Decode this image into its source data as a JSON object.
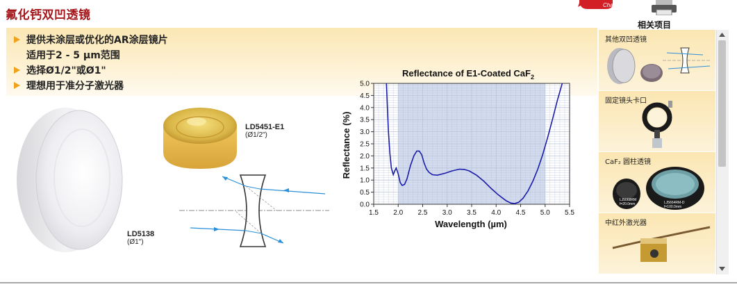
{
  "page": {
    "title": "氟化钙双凹透镜",
    "related_title": "相关项目",
    "chat_label": "Chat!"
  },
  "features": [
    {
      "text": "提供未涂层或优化的AR涂层镜片",
      "bullet": true
    },
    {
      "text": "适用于2 - 5 µm范围",
      "bullet": false
    },
    {
      "text": "选择Ø1/2\"或Ø1\"",
      "bullet": true
    },
    {
      "text": "理想用于准分子激光器",
      "bullet": true
    }
  ],
  "products": [
    {
      "code": "LD5451-E1",
      "size": "(Ø1/2\")"
    },
    {
      "code": "LD5138",
      "size": "(Ø1\")"
    }
  ],
  "related_items": [
    {
      "label": "其他双凹透镜",
      "icon": "biconcave-lens-icon"
    },
    {
      "label": "固定镜头卡口",
      "icon": "lens-mount-icon"
    },
    {
      "label": "CaF₂ 圆柱透镜",
      "icon": "mounted-lens-icon",
      "sublabels": [
        "LJ5068RM",
        "f=20.0mm",
        "LJ5664RM-D",
        "f=100.0mm"
      ]
    },
    {
      "label": "中红外激光器",
      "icon": "laser-icon"
    }
  ],
  "chart_data": {
    "type": "line",
    "title": "Reflectance of E1-Coated CaF",
    "title_subscript": "2",
    "xlabel": "Wavelength (µm)",
    "ylabel": "Reflectance (%)",
    "xlim": [
      1.5,
      5.5
    ],
    "ylim": [
      0.0,
      5.0
    ],
    "xticks": [
      1.5,
      2.0,
      2.5,
      3.0,
      3.5,
      4.0,
      4.5,
      5.0,
      5.5
    ],
    "yticks": [
      0.0,
      0.5,
      1.0,
      1.5,
      2.0,
      2.5,
      3.0,
      3.5,
      4.0,
      4.5,
      5.0
    ],
    "shaded_region": [
      2.0,
      5.0
    ],
    "grid": true,
    "colors": {
      "line": "#1a1aa8",
      "shade": "#d3dcef",
      "grid": "#b9c3d8"
    },
    "series": [
      {
        "x": [
          1.76,
          1.78,
          1.8,
          1.83,
          1.86,
          1.9,
          1.93,
          1.96,
          2.0,
          2.04,
          2.08,
          2.13,
          2.18,
          2.25,
          2.32,
          2.38,
          2.43,
          2.48,
          2.53,
          2.58,
          2.63,
          2.7,
          2.8,
          2.95,
          3.1,
          3.25,
          3.35,
          3.45,
          3.6,
          3.75,
          3.9,
          4.05,
          4.2,
          4.3,
          4.38,
          4.46,
          4.55,
          4.65,
          4.75,
          4.85,
          4.95,
          5.05,
          5.15,
          5.25,
          5.35
        ],
        "y": [
          5.0,
          4.0,
          3.0,
          2.1,
          1.5,
          1.22,
          1.38,
          1.5,
          1.25,
          0.9,
          0.78,
          0.82,
          1.05,
          1.6,
          2.0,
          2.2,
          2.2,
          2.05,
          1.7,
          1.45,
          1.32,
          1.22,
          1.2,
          1.28,
          1.38,
          1.45,
          1.44,
          1.38,
          1.2,
          0.95,
          0.65,
          0.38,
          0.15,
          0.05,
          0.03,
          0.08,
          0.25,
          0.55,
          0.95,
          1.45,
          2.05,
          2.75,
          3.5,
          4.3,
          5.0
        ]
      }
    ]
  }
}
